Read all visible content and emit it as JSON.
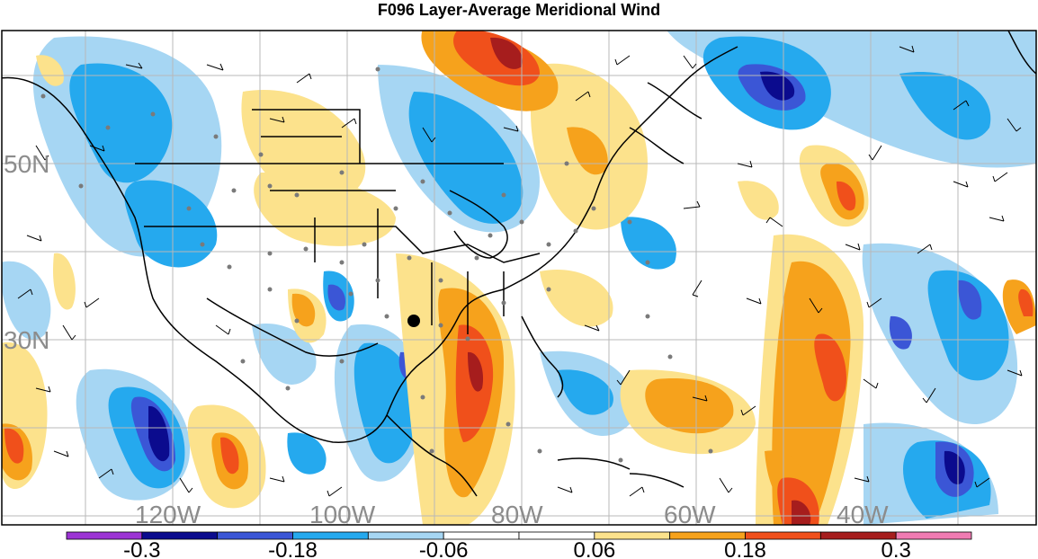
{
  "title": "F096 Layer-Average Meridional Wind",
  "map": {
    "lat_labels": [
      "50N",
      "30N"
    ],
    "lon_labels": [
      "120W",
      "100W",
      "80W",
      "60W",
      "40W"
    ]
  },
  "colorbar": {
    "colors": [
      "#9c34d4",
      "#0b0b8e",
      "#3b56d6",
      "#25a9ee",
      "#a6d6f3",
      "#ffffff",
      "#ffffff",
      "#fce28c",
      "#f6a21c",
      "#f0501b",
      "#a61d1d",
      "#f07bb2"
    ],
    "labels": [
      {
        "text": "-0.3",
        "after_bin": 1
      },
      {
        "text": "-0.18",
        "after_bin": 3
      },
      {
        "text": "-0.06",
        "after_bin": 5
      },
      {
        "text": "0.06",
        "after_bin": 7
      },
      {
        "text": "0.18",
        "after_bin": 9
      },
      {
        "text": "0.3",
        "after_bin": 11
      }
    ]
  }
}
